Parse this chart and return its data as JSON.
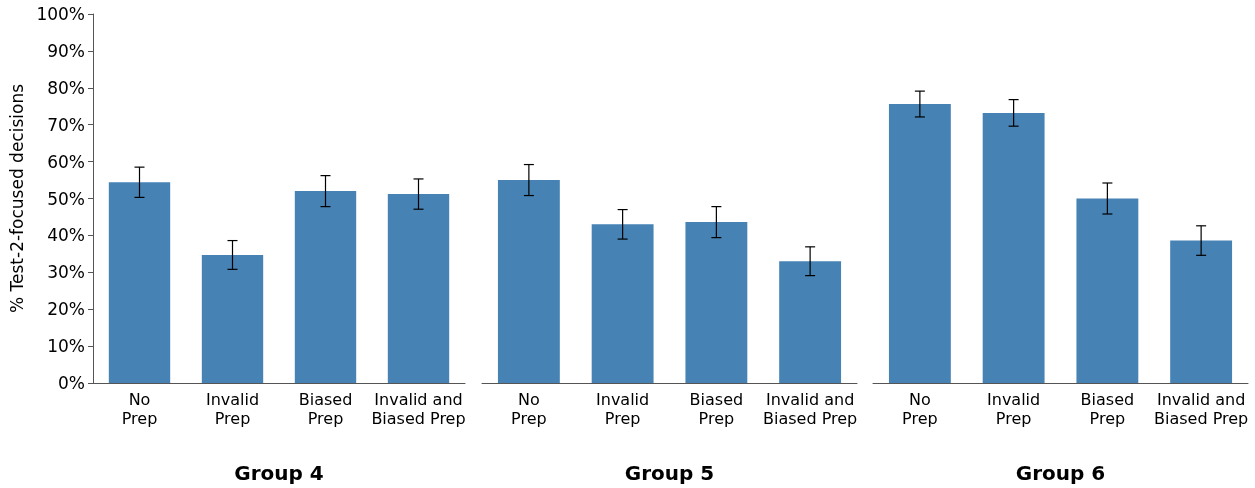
{
  "chart_data": [
    {
      "type": "bar",
      "categories": [
        "No\nPrep",
        "Invalid\nPrep",
        "Biased\nPrep",
        "Invalid and\nBiased Prep"
      ],
      "values": [
        54.4,
        34.7,
        52.0,
        51.2
      ],
      "errors": [
        4.1,
        3.9,
        4.2,
        4.1
      ],
      "color": "#4682b4",
      "xlabel": "Group 4",
      "ylabel": "% Test-2-focused decisions",
      "ylim": [
        0,
        100
      ],
      "yticks": [
        {
          "value": 0,
          "label": "0%"
        },
        {
          "value": 10,
          "label": "10%"
        },
        {
          "value": 20,
          "label": "20%"
        },
        {
          "value": 30,
          "label": "30%"
        },
        {
          "value": 40,
          "label": "40%"
        },
        {
          "value": 50,
          "label": "50%"
        },
        {
          "value": 60,
          "label": "60%"
        },
        {
          "value": 70,
          "label": "70%"
        },
        {
          "value": 80,
          "label": "80%"
        },
        {
          "value": 90,
          "label": "90%"
        },
        {
          "value": 100,
          "label": "100%"
        }
      ],
      "grid": false
    },
    {
      "type": "bar",
      "categories": [
        "No\nPrep",
        "Invalid\nPrep",
        "Biased\nPrep",
        "Invalid and\nBiased Prep"
      ],
      "values": [
        55.0,
        43.0,
        43.6,
        33.0
      ],
      "errors": [
        4.2,
        4.0,
        4.2,
        3.9
      ],
      "color": "#4682b4",
      "xlabel": "Group 5",
      "ylim": [
        0,
        100
      ],
      "tick_labels": "x",
      "grid": false
    },
    {
      "type": "bar",
      "categories": [
        "No\nPrep",
        "Invalid\nPrep",
        "Biased\nPrep",
        "Invalid and\nBiased Prep"
      ],
      "values": [
        75.6,
        73.2,
        50.0,
        38.6
      ],
      "errors": [
        3.5,
        3.6,
        4.2,
        4.0
      ],
      "color": "#4682b4",
      "xlabel": "Group 6",
      "ylim": [
        0,
        100
      ],
      "tick_labels": "x",
      "grid": false
    }
  ]
}
